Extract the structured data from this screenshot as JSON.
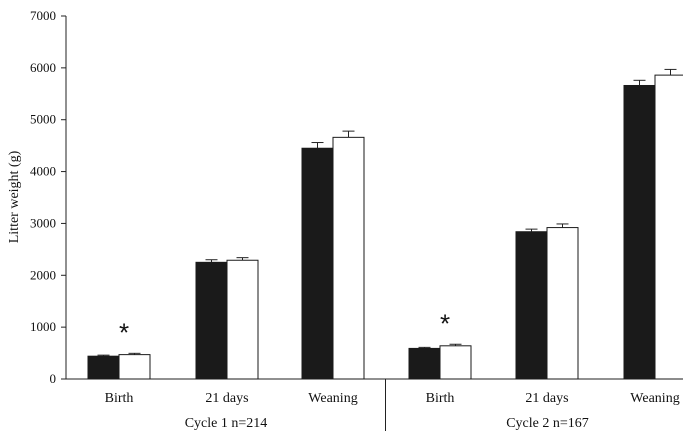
{
  "chart_data": {
    "type": "bar",
    "ylabel": "Litter weight (g)",
    "ylim": [
      0,
      7000
    ],
    "yticks": [
      0,
      1000,
      2000,
      3000,
      4000,
      5000,
      6000,
      7000
    ],
    "groups": [
      {
        "label": "Cycle 1 n=214",
        "categories": [
          "Birth",
          "21 days",
          "Weaning"
        ]
      },
      {
        "label": "Cycle 2 n=167",
        "categories": [
          "Birth",
          "21 days",
          "Weaning"
        ]
      }
    ],
    "series": [
      {
        "color": "#1a1a1a",
        "fill": "#1a1a1a",
        "values": [
          440,
          2250,
          4450,
          590,
          2840,
          5660
        ],
        "errors": [
          20,
          50,
          110,
          20,
          50,
          100
        ]
      },
      {
        "color": "#1a1a1a",
        "fill": "#ffffff",
        "values": [
          470,
          2290,
          4660,
          640,
          2920,
          5860
        ],
        "errors": [
          25,
          50,
          120,
          30,
          70,
          110
        ]
      }
    ],
    "annotations": [
      {
        "text": "*",
        "category_index": 0
      },
      {
        "text": "*",
        "category_index": 3
      }
    ]
  }
}
